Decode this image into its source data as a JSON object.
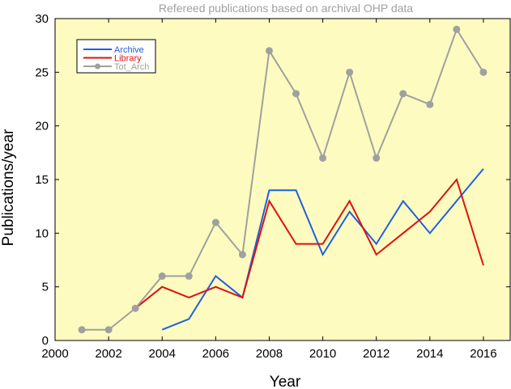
{
  "chart_data": {
    "type": "line",
    "title": "Refereed publications based on archival OHP data",
    "xlabel": "Year",
    "ylabel": "Publications/year",
    "xlim": [
      2000,
      2017
    ],
    "ylim": [
      0,
      30
    ],
    "x_ticks": [
      2000,
      2002,
      2004,
      2006,
      2008,
      2010,
      2012,
      2014,
      2016
    ],
    "y_ticks": [
      0,
      5,
      10,
      15,
      20,
      25,
      30
    ],
    "grid": false,
    "legend_position": "top-left",
    "plot_background": "#fdfbbf",
    "series": [
      {
        "name": "Archive",
        "color": "#1f5fe0",
        "markers": false,
        "x": [
          2004,
          2005,
          2006,
          2007,
          2008,
          2009,
          2010,
          2011,
          2012,
          2013,
          2014,
          2015,
          2016
        ],
        "y": [
          1,
          2,
          6,
          4,
          14,
          14,
          8,
          12,
          9,
          13,
          10,
          13,
          16
        ]
      },
      {
        "name": "Library",
        "color": "#dd1111",
        "markers": false,
        "x": [
          2003,
          2004,
          2005,
          2006,
          2007,
          2008,
          2009,
          2010,
          2011,
          2012,
          2013,
          2014,
          2015,
          2016
        ],
        "y": [
          3,
          5,
          4,
          5,
          4,
          13,
          9,
          9,
          13,
          8,
          10,
          12,
          15,
          7
        ]
      },
      {
        "name": "Tot_Arch",
        "color": "#a0a0a0",
        "markers": true,
        "x": [
          2001,
          2002,
          2003,
          2004,
          2005,
          2006,
          2007,
          2008,
          2009,
          2010,
          2011,
          2012,
          2013,
          2014,
          2015,
          2016
        ],
        "y": [
          1,
          1,
          3,
          6,
          6,
          11,
          8,
          27,
          23,
          17,
          25,
          17,
          23,
          22,
          29,
          25
        ]
      }
    ]
  }
}
